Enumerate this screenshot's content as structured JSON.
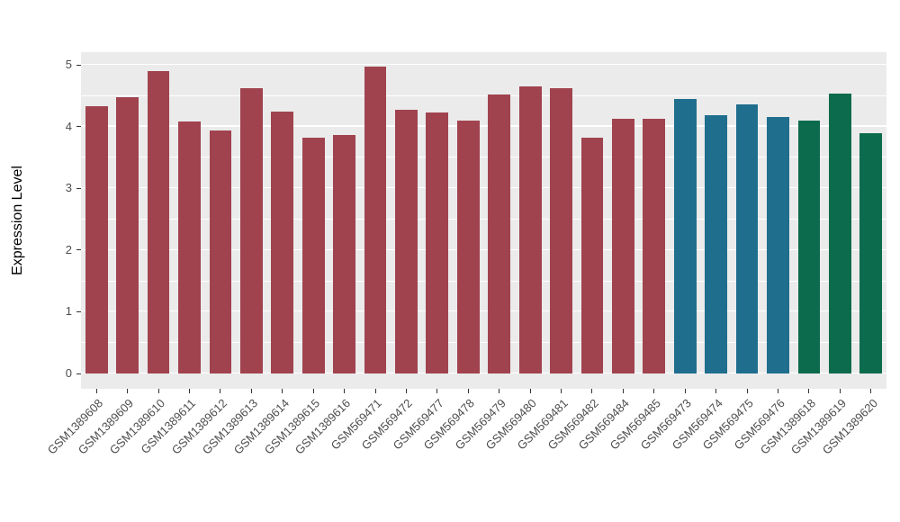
{
  "chart_data": {
    "type": "bar",
    "title": "",
    "xlabel": "",
    "ylabel": "Expression Level",
    "ylim": [
      0,
      5.2
    ],
    "yticks": [
      0,
      1,
      2,
      3,
      4,
      5
    ],
    "ytick_labels": [
      "0",
      "1",
      "2",
      "3",
      "4",
      "5"
    ],
    "minor_gridlines": [
      0.5,
      1.5,
      2.5,
      3.5,
      4.5
    ],
    "grid": "on",
    "legend_position": "none",
    "panel_background": "#EBEBEB",
    "gridline_color": "#FFFFFF",
    "categories": [
      "GSM1389608",
      "GSM1389609",
      "GSM1389610",
      "GSM1389611",
      "GSM1389612",
      "GSM1389613",
      "GSM1389614",
      "GSM1389615",
      "GSM1389616",
      "GSM569471",
      "GSM569472",
      "GSM569477",
      "GSM569478",
      "GSM569479",
      "GSM569480",
      "GSM569481",
      "GSM569482",
      "GSM569484",
      "GSM569485",
      "GSM569473",
      "GSM569474",
      "GSM569475",
      "GSM569476",
      "GSM1389618",
      "GSM1389619",
      "GSM1389620"
    ],
    "values": [
      4.33,
      4.47,
      4.9,
      4.08,
      3.94,
      4.62,
      4.24,
      3.82,
      3.86,
      4.97,
      4.27,
      4.23,
      4.1,
      4.52,
      4.65,
      4.62,
      3.82,
      4.13,
      4.12,
      4.45,
      4.18,
      4.36,
      4.16,
      4.1,
      4.53,
      3.89
    ],
    "bar_groups": [
      "maroon",
      "maroon",
      "maroon",
      "maroon",
      "maroon",
      "maroon",
      "maroon",
      "maroon",
      "maroon",
      "maroon",
      "maroon",
      "maroon",
      "maroon",
      "maroon",
      "maroon",
      "maroon",
      "maroon",
      "maroon",
      "maroon",
      "teal",
      "teal",
      "teal",
      "teal",
      "green",
      "green",
      "green"
    ],
    "group_colors": {
      "maroon": "#A0434F",
      "teal": "#1F6E8E",
      "green": "#0D6B4D"
    }
  }
}
